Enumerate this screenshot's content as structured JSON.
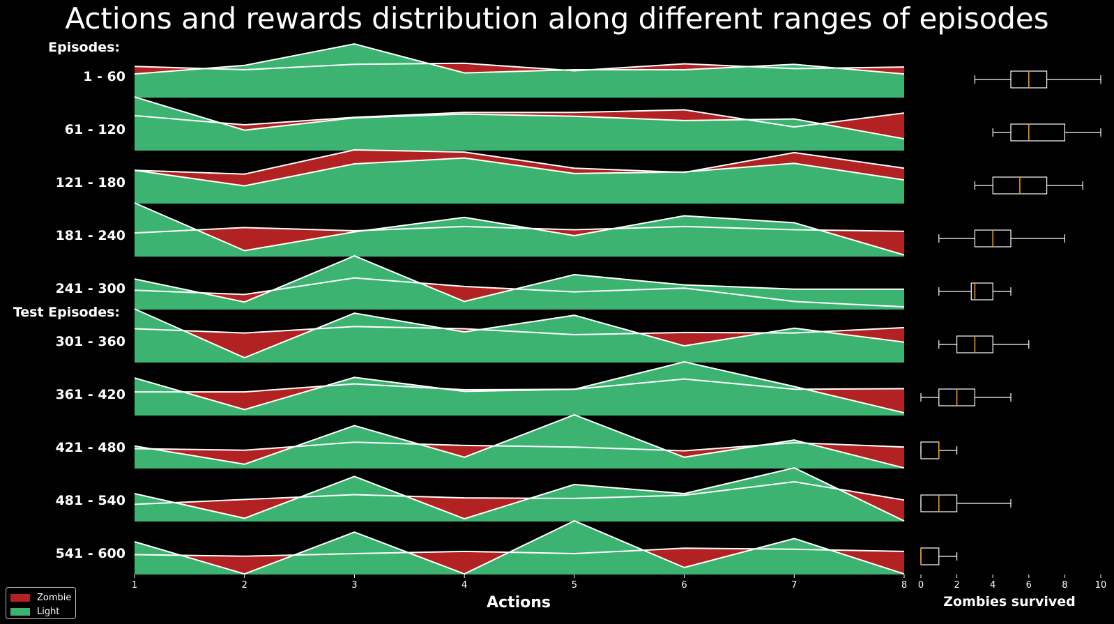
{
  "title": "Actions and rewards distribution along different ranges of episodes",
  "section_labels": {
    "train": "Episodes:",
    "test": "Test Episodes:"
  },
  "colors": {
    "zombie": "#b22222",
    "light": "#3cb371",
    "line": "#ffffff",
    "median": "#ff9f1c"
  },
  "chart_data": [
    {
      "type": "area",
      "description_free": true,
      "xlabel": "Actions",
      "x": [
        1,
        2,
        3,
        4,
        5,
        6,
        7,
        8
      ],
      "xlim": [
        1,
        8
      ],
      "series_names": [
        "Zombie",
        "Light"
      ],
      "rows": [
        {
          "label": "1 - 60",
          "zombie": [
            0.58,
            0.52,
            0.62,
            0.64,
            0.5,
            0.63,
            0.54,
            0.57
          ],
          "light": [
            0.44,
            0.6,
            1.0,
            0.46,
            0.52,
            0.52,
            0.62,
            0.44
          ]
        },
        {
          "label": "61 - 120",
          "zombie": [
            0.65,
            0.48,
            0.62,
            0.71,
            0.71,
            0.76,
            0.44,
            0.7
          ],
          "light": [
            1.0,
            0.38,
            0.61,
            0.68,
            0.64,
            0.56,
            0.59,
            0.22
          ]
        },
        {
          "label": "121 - 180",
          "zombie": [
            0.62,
            0.55,
            1.0,
            0.96,
            0.66,
            0.58,
            0.95,
            0.66
          ],
          "light": [
            0.62,
            0.33,
            0.74,
            0.85,
            0.56,
            0.59,
            0.75,
            0.44
          ]
        },
        {
          "label": "181 - 240",
          "zombie": [
            0.44,
            0.54,
            0.48,
            0.56,
            0.5,
            0.56,
            0.5,
            0.47
          ],
          "light": [
            1.0,
            0.11,
            0.46,
            0.73,
            0.39,
            0.76,
            0.63,
            0.03
          ]
        },
        {
          "label": "241 - 300",
          "zombie": [
            0.36,
            0.28,
            0.59,
            0.43,
            0.33,
            0.4,
            0.15,
            0.05
          ],
          "light": [
            0.57,
            0.14,
            1.0,
            0.15,
            0.65,
            0.46,
            0.38,
            0.38
          ]
        },
        {
          "label": "301 - 360",
          "zombie": [
            0.63,
            0.55,
            0.67,
            0.63,
            0.52,
            0.56,
            0.55,
            0.65
          ],
          "light": [
            1.0,
            0.09,
            0.92,
            0.57,
            0.88,
            0.31,
            0.64,
            0.38
          ]
        },
        {
          "label": "361 - 420",
          "zombie": [
            0.44,
            0.44,
            0.59,
            0.48,
            0.49,
            0.68,
            0.49,
            0.5
          ],
          "light": [
            0.7,
            0.11,
            0.71,
            0.45,
            0.49,
            1.0,
            0.54,
            0.05
          ]
        },
        {
          "label": "421 - 480",
          "zombie": [
            0.37,
            0.34,
            0.49,
            0.43,
            0.4,
            0.33,
            0.48,
            0.4
          ],
          "light": [
            0.42,
            0.08,
            0.8,
            0.21,
            1.0,
            0.21,
            0.53,
            0.01
          ]
        },
        {
          "label": "481 - 540",
          "zombie": [
            0.32,
            0.41,
            0.5,
            0.44,
            0.43,
            0.49,
            0.74,
            0.4
          ],
          "light": [
            0.52,
            0.06,
            0.84,
            0.05,
            0.69,
            0.52,
            1.0,
            0.01
          ]
        },
        {
          "label": "541 - 600",
          "zombie": [
            0.37,
            0.34,
            0.39,
            0.43,
            0.39,
            0.49,
            0.47,
            0.43
          ],
          "light": [
            0.61,
            0.01,
            0.79,
            0.01,
            1.0,
            0.13,
            0.67,
            0.01
          ]
        }
      ],
      "legend": [
        "Zombie",
        "Light"
      ],
      "legend_position": "bottom-left"
    },
    {
      "type": "box",
      "xlabel": "Zombies survived",
      "xlim": [
        0,
        10
      ],
      "xticks": [
        0,
        2,
        4,
        6,
        8,
        10
      ],
      "boxes": [
        {
          "label": "1 - 60",
          "whislo": 3,
          "q1": 5,
          "med": 6,
          "q3": 7,
          "whishi": 10
        },
        {
          "label": "61 - 120",
          "whislo": 4,
          "q1": 5,
          "med": 6,
          "q3": 8,
          "whishi": 10
        },
        {
          "label": "121 - 180",
          "whislo": 3,
          "q1": 4,
          "med": 5.5,
          "q3": 7,
          "whishi": 9
        },
        {
          "label": "181 - 240",
          "whislo": 1,
          "q1": 3,
          "med": 4,
          "q3": 5,
          "whishi": 8
        },
        {
          "label": "241 - 300",
          "whislo": 1,
          "q1": 2.8,
          "med": 3,
          "q3": 4,
          "whishi": 5
        },
        {
          "label": "301 - 360",
          "whislo": 1,
          "q1": 2,
          "med": 3,
          "q3": 4,
          "whishi": 6
        },
        {
          "label": "361 - 420",
          "whislo": 0,
          "q1": 1,
          "med": 2,
          "q3": 3,
          "whishi": 5
        },
        {
          "label": "421 - 480",
          "whislo": 0,
          "q1": 0,
          "med": 1,
          "q3": 1,
          "whishi": 2
        },
        {
          "label": "481 - 540",
          "whislo": 0,
          "q1": 0,
          "med": 1,
          "q3": 2,
          "whishi": 5
        },
        {
          "label": "541 - 600",
          "whislo": 0,
          "q1": 0,
          "med": 0,
          "q3": 1,
          "whishi": 2
        }
      ]
    }
  ]
}
